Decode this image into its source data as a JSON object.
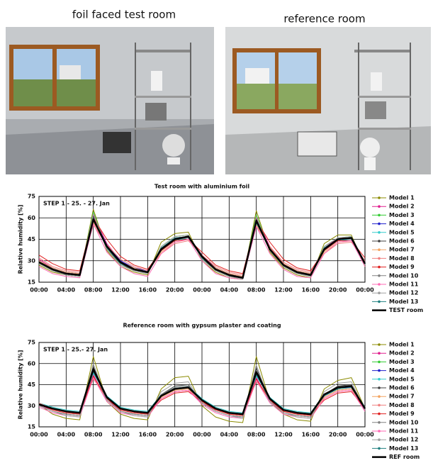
{
  "header": {
    "left_caption": "foil faced test room",
    "right_caption": "reference room"
  },
  "chart_data": [
    {
      "type": "line",
      "title": "Test room with aluminium foil",
      "annotation": "STEP 1 - 25. - 27. Jan",
      "y_label": "Relative humidity [%]",
      "x": [
        0,
        2,
        4,
        6,
        8,
        10,
        12,
        14,
        16,
        18,
        20,
        22,
        24,
        26,
        28,
        30,
        32,
        34,
        36,
        38,
        40,
        42,
        44,
        46,
        48
      ],
      "xlim": [
        0,
        48
      ],
      "xticks": [
        {
          "value": 0,
          "label": "00:00"
        },
        {
          "value": 4,
          "label": "04:00"
        },
        {
          "value": 8,
          "label": "08:00"
        },
        {
          "value": 12,
          "label": "12:00"
        },
        {
          "value": 16,
          "label": "16:00"
        },
        {
          "value": 20,
          "label": "20:00"
        },
        {
          "value": 24,
          "label": "00:00"
        },
        {
          "value": 28,
          "label": "04:00"
        },
        {
          "value": 32,
          "label": "08:00"
        },
        {
          "value": 36,
          "label": "12:00"
        },
        {
          "value": 40,
          "label": "16:00"
        },
        {
          "value": 44,
          "label": "20:00"
        },
        {
          "value": 48,
          "label": "00:00"
        }
      ],
      "ylim": [
        15,
        75
      ],
      "yticks": [
        15,
        30,
        45,
        60,
        75
      ],
      "grid": true,
      "series": [
        {
          "name": "Model 1",
          "color": "#8b8b00",
          "values": [
            27,
            22,
            20,
            19,
            66,
            37,
            26,
            22,
            20,
            43,
            49,
            50,
            30,
            22,
            18,
            17,
            65,
            36,
            25,
            20,
            18,
            42,
            48,
            48,
            26
          ]
        },
        {
          "name": "Model 2",
          "color": "#e0208f",
          "values": [
            31,
            25,
            22,
            21,
            62,
            42,
            30,
            25,
            22,
            39,
            46,
            47,
            34,
            25,
            21,
            19,
            60,
            40,
            28,
            23,
            21,
            39,
            46,
            46,
            29
          ]
        },
        {
          "name": "Model 3",
          "color": "#33cc33",
          "values": [
            28,
            23,
            20,
            19,
            64,
            38,
            27,
            23,
            21,
            40,
            47,
            48,
            31,
            23,
            19,
            18,
            62,
            37,
            26,
            21,
            19,
            40,
            46,
            47,
            27
          ]
        },
        {
          "name": "Model 4",
          "color": "#1f1fcc",
          "values": [
            30,
            25,
            22,
            21,
            60,
            41,
            30,
            25,
            23,
            38,
            45,
            46,
            33,
            25,
            21,
            19,
            57,
            39,
            28,
            23,
            21,
            38,
            44,
            45,
            29
          ]
        },
        {
          "name": "Model 5",
          "color": "#33cccc",
          "values": [
            29,
            24,
            21,
            20,
            58,
            39,
            29,
            24,
            22,
            37,
            44,
            46,
            32,
            24,
            20,
            18,
            56,
            38,
            27,
            22,
            20,
            37,
            44,
            45,
            28
          ]
        },
        {
          "name": "Model 6",
          "color": "#404040",
          "values": [
            28,
            23,
            20,
            19,
            61,
            38,
            28,
            23,
            21,
            39,
            46,
            47,
            32,
            23,
            19,
            18,
            59,
            37,
            26,
            21,
            19,
            39,
            45,
            46,
            27
          ]
        },
        {
          "name": "Model 7",
          "color": "#f4a460",
          "values": [
            30,
            25,
            22,
            21,
            57,
            40,
            29,
            25,
            22,
            36,
            43,
            45,
            33,
            25,
            21,
            19,
            55,
            39,
            28,
            23,
            21,
            36,
            43,
            44,
            29
          ]
        },
        {
          "name": "Model 8",
          "color": "#f08080",
          "values": [
            32,
            26,
            23,
            22,
            55,
            41,
            31,
            26,
            23,
            35,
            42,
            44,
            34,
            26,
            22,
            20,
            54,
            40,
            29,
            24,
            22,
            35,
            42,
            43,
            30
          ]
        },
        {
          "name": "Model 9",
          "color": "#e02020",
          "values": [
            34,
            28,
            24,
            23,
            60,
            45,
            33,
            27,
            24,
            37,
            44,
            45,
            36,
            27,
            23,
            21,
            58,
            43,
            31,
            25,
            23,
            37,
            44,
            44,
            32
          ]
        },
        {
          "name": "Model 10",
          "color": "#808080",
          "values": [
            29,
            24,
            21,
            20,
            59,
            39,
            29,
            24,
            22,
            38,
            45,
            46,
            32,
            24,
            20,
            18,
            57,
            38,
            27,
            22,
            20,
            38,
            45,
            45,
            28
          ]
        },
        {
          "name": "Model 11",
          "color": "#ff69b4",
          "values": [
            26,
            21,
            19,
            18,
            56,
            36,
            26,
            21,
            19,
            35,
            43,
            45,
            30,
            21,
            18,
            17,
            54,
            35,
            24,
            19,
            18,
            35,
            43,
            44,
            26
          ]
        },
        {
          "name": "Model 12",
          "color": "#a0a0a0",
          "values": [
            28,
            23,
            20,
            19,
            63,
            38,
            27,
            23,
            21,
            40,
            47,
            48,
            31,
            23,
            19,
            17,
            61,
            37,
            26,
            21,
            19,
            40,
            46,
            47,
            27
          ]
        },
        {
          "name": "Model 13",
          "color": "#208080",
          "values": [
            29,
            24,
            21,
            20,
            60,
            39,
            28,
            24,
            22,
            39,
            46,
            47,
            32,
            24,
            20,
            18,
            58,
            38,
            27,
            22,
            20,
            39,
            45,
            46,
            28
          ]
        },
        {
          "name": "TEST room",
          "color": "#000000",
          "line_width": 2.5,
          "values": [
            29,
            24,
            21,
            20,
            59,
            40,
            29,
            24,
            22,
            38,
            45,
            47,
            33,
            24,
            20,
            18,
            58,
            38,
            27,
            22,
            20,
            38,
            45,
            46,
            28
          ]
        }
      ]
    },
    {
      "type": "line",
      "title": "Reference room with gypsum plaster and coating",
      "annotation": "STEP 1 - 25.- 27. Jan",
      "y_label": "Relative humidity [%]",
      "x": [
        0,
        2,
        4,
        6,
        8,
        10,
        12,
        14,
        16,
        18,
        20,
        22,
        24,
        26,
        28,
        30,
        32,
        34,
        36,
        38,
        40,
        42,
        44,
        46,
        48
      ],
      "xlim": [
        0,
        48
      ],
      "xticks": [
        {
          "value": 0,
          "label": "00:00"
        },
        {
          "value": 4,
          "label": "04:00"
        },
        {
          "value": 8,
          "label": "08:00"
        },
        {
          "value": 12,
          "label": "12:00"
        },
        {
          "value": 16,
          "label": "16:00"
        },
        {
          "value": 20,
          "label": "20:00"
        },
        {
          "value": 24,
          "label": "00:00"
        },
        {
          "value": 28,
          "label": "04:00"
        },
        {
          "value": 32,
          "label": "08:00"
        },
        {
          "value": 36,
          "label": "12:00"
        },
        {
          "value": 40,
          "label": "16:00"
        },
        {
          "value": 44,
          "label": "20:00"
        },
        {
          "value": 48,
          "label": "00:00"
        }
      ],
      "ylim": [
        15,
        75
      ],
      "yticks": [
        15,
        30,
        45,
        60,
        75
      ],
      "grid": true,
      "series": [
        {
          "name": "Model 1",
          "color": "#8b8b00",
          "values": [
            31,
            24,
            21,
            20,
            65,
            33,
            24,
            21,
            20,
            42,
            50,
            51,
            30,
            22,
            19,
            18,
            65,
            33,
            24,
            20,
            19,
            42,
            48,
            50,
            28
          ]
        },
        {
          "name": "Model 2",
          "color": "#e0208f",
          "values": [
            30,
            27,
            25,
            24,
            52,
            34,
            27,
            25,
            24,
            35,
            40,
            41,
            32,
            27,
            24,
            23,
            50,
            33,
            26,
            24,
            23,
            36,
            41,
            42,
            27
          ]
        },
        {
          "name": "Model 3",
          "color": "#33cc33",
          "values": [
            31,
            28,
            26,
            25,
            55,
            35,
            28,
            26,
            25,
            37,
            42,
            43,
            33,
            28,
            25,
            24,
            53,
            34,
            27,
            25,
            24,
            37,
            42,
            43,
            28
          ]
        },
        {
          "name": "Model 4",
          "color": "#1f1fcc",
          "values": [
            31,
            28,
            26,
            25,
            54,
            36,
            28,
            26,
            25,
            37,
            42,
            43,
            34,
            28,
            25,
            24,
            52,
            35,
            27,
            25,
            24,
            37,
            43,
            43,
            28
          ]
        },
        {
          "name": "Model 5",
          "color": "#33cccc",
          "values": [
            32,
            29,
            27,
            26,
            53,
            37,
            29,
            27,
            26,
            38,
            43,
            44,
            35,
            29,
            26,
            25,
            51,
            36,
            28,
            26,
            25,
            38,
            43,
            44,
            29
          ]
        },
        {
          "name": "Model 6",
          "color": "#404040",
          "values": [
            30,
            26,
            24,
            23,
            58,
            34,
            26,
            24,
            23,
            38,
            44,
            45,
            32,
            26,
            23,
            22,
            57,
            33,
            25,
            23,
            22,
            38,
            44,
            45,
            27
          ]
        },
        {
          "name": "Model 7",
          "color": "#f4a460",
          "values": [
            31,
            27,
            25,
            24,
            50,
            35,
            27,
            25,
            24,
            36,
            41,
            42,
            33,
            27,
            24,
            23,
            48,
            34,
            26,
            24,
            23,
            36,
            41,
            42,
            28
          ]
        },
        {
          "name": "Model 8",
          "color": "#f08080",
          "values": [
            32,
            28,
            26,
            25,
            49,
            36,
            28,
            26,
            25,
            35,
            40,
            41,
            34,
            28,
            25,
            24,
            47,
            35,
            27,
            25,
            24,
            35,
            40,
            41,
            29
          ]
        },
        {
          "name": "Model 9",
          "color": "#e02020",
          "values": [
            31,
            27,
            25,
            24,
            51,
            35,
            27,
            25,
            24,
            34,
            39,
            40,
            33,
            27,
            24,
            23,
            49,
            34,
            26,
            24,
            23,
            34,
            39,
            40,
            28
          ]
        },
        {
          "name": "Model 10",
          "color": "#808080",
          "values": [
            30,
            26,
            24,
            23,
            55,
            34,
            26,
            24,
            23,
            38,
            43,
            44,
            32,
            26,
            23,
            22,
            53,
            33,
            25,
            23,
            22,
            38,
            43,
            44,
            27
          ]
        },
        {
          "name": "Model 11",
          "color": "#ff69b4",
          "values": [
            29,
            25,
            23,
            22,
            50,
            33,
            25,
            23,
            22,
            35,
            40,
            41,
            31,
            25,
            22,
            21,
            48,
            32,
            24,
            22,
            21,
            35,
            40,
            41,
            26
          ]
        },
        {
          "name": "Model 12",
          "color": "#a0a0a0",
          "values": [
            30,
            26,
            23,
            22,
            60,
            34,
            26,
            23,
            22,
            40,
            46,
            47,
            32,
            26,
            23,
            21,
            59,
            33,
            25,
            22,
            21,
            40,
            46,
            47,
            27
          ]
        },
        {
          "name": "Model 13",
          "color": "#208080",
          "values": [
            31,
            28,
            26,
            25,
            54,
            36,
            28,
            26,
            25,
            37,
            42,
            43,
            34,
            28,
            25,
            24,
            52,
            35,
            27,
            25,
            24,
            37,
            42,
            43,
            28
          ]
        },
        {
          "name": "REF room",
          "color": "#000000",
          "line_width": 2.5,
          "values": [
            31,
            28,
            26,
            25,
            56,
            36,
            28,
            26,
            25,
            37,
            42,
            43,
            34,
            28,
            25,
            24,
            54,
            35,
            27,
            25,
            24,
            38,
            43,
            44,
            28
          ]
        }
      ]
    }
  ]
}
